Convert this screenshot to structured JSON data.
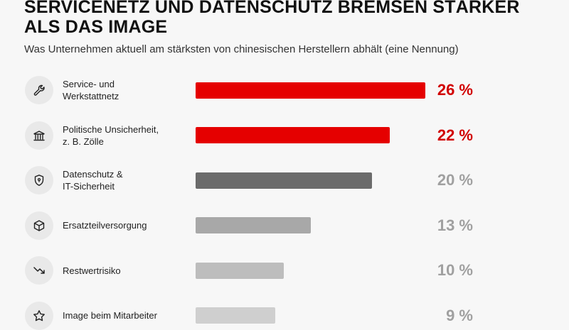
{
  "title": "SERVICENETZ UND DATENSCHUTZ BREMSEN STÄRKER ALS DAS IMAGE",
  "subtitle": "Was Unternehmen aktuell am stärksten von chinesischen Herstellern abhält (eine Nennung)",
  "chart_data": {
    "type": "bar",
    "orientation": "horizontal",
    "title": "SERVICENETZ UND DATENSCHUTZ BREMSEN STÄRKER ALS DAS IMAGE",
    "subtitle": "Was Unternehmen aktuell am stärksten von chinesischen Herstellern abhält (eine Nennung)",
    "unit": "%",
    "categories": [
      "Service- und\nWerkstattnetz",
      "Politische Unsicherheit,\nz. B. Zölle",
      "Datenschutz &\nIT-Sicherheit",
      "Ersatzteilversorgung",
      "Restwertrisiko",
      "Image beim Mitarbeiter"
    ],
    "values": [
      26,
      22,
      20,
      13,
      10,
      9
    ],
    "value_labels": [
      "26 %",
      "22 %",
      "20 %",
      "13 %",
      "10 %",
      "9 %"
    ],
    "bar_colors": [
      "#e50000",
      "#e50000",
      "#6b6b6b",
      "#a8a8a8",
      "#bdbdbd",
      "#cfcfcf"
    ],
    "label_colors": [
      "#d10000",
      "#d10000",
      "#a0a0a0",
      "#a0a0a0",
      "#a0a0a0",
      "#a0a0a0"
    ],
    "icons": [
      "wrench-icon",
      "bank-icon",
      "shield-icon",
      "box-icon",
      "trend-down-icon",
      "star-icon"
    ],
    "xlim": [
      0,
      26
    ],
    "grid": false
  }
}
